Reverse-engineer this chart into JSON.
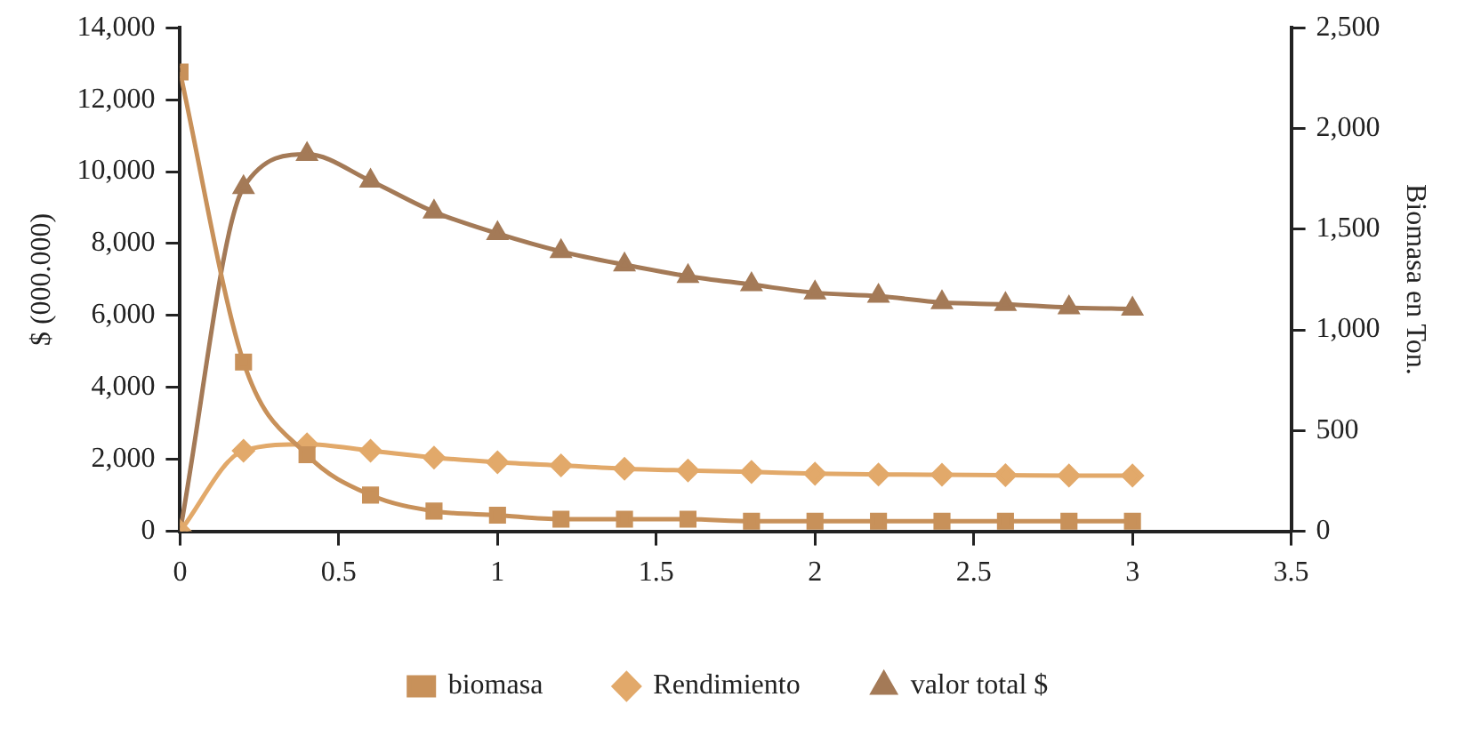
{
  "chart_data": {
    "type": "line",
    "xlabel": null,
    "ylabel": "$ (000.000)",
    "y2label": "Biomasa en Ton.",
    "x": [
      0,
      0.2,
      0.4,
      0.6,
      0.8,
      1,
      1.2,
      1.4,
      1.6,
      1.8,
      2,
      2.2,
      2.4,
      2.6,
      2.8,
      3
    ],
    "series": [
      {
        "name": "biomasa",
        "color": "#c8915a",
        "marker": "square",
        "axis": "y2",
        "values": [
          2280,
          840,
          380,
          180,
          100,
          80,
          60,
          60,
          60,
          50,
          50,
          50,
          50,
          50,
          50,
          50
        ]
      },
      {
        "name": "Rendimiento",
        "color": "#e2a96a",
        "marker": "diamond",
        "values": [
          0,
          2240,
          2420,
          2240,
          2050,
          1920,
          1830,
          1740,
          1690,
          1650,
          1600,
          1580,
          1570,
          1560,
          1550,
          1550
        ]
      },
      {
        "name": "valor total $",
        "color": "#a47a57",
        "marker": "triangle",
        "values": [
          0,
          9560,
          10480,
          9740,
          8880,
          8280,
          7780,
          7410,
          7090,
          6860,
          6630,
          6540,
          6360,
          6310,
          6220,
          6180
        ]
      }
    ],
    "xlim": [
      0,
      3.5
    ],
    "xticks": [
      0,
      0.5,
      1,
      1.5,
      2,
      2.5,
      3,
      3.5
    ],
    "ylim": [
      0,
      14000
    ],
    "yticks": [
      {
        "value": 0,
        "label": "0"
      },
      {
        "value": 2000,
        "label": "2,000"
      },
      {
        "value": 4000,
        "label": "4,000"
      },
      {
        "value": 6000,
        "label": "6,000"
      },
      {
        "value": 8000,
        "label": "8,000"
      },
      {
        "value": 10000,
        "label": "10,000"
      },
      {
        "value": 12000,
        "label": "12,000"
      },
      {
        "value": 14000,
        "label": "14,000"
      }
    ],
    "y2lim": [
      0,
      2500
    ],
    "y2ticks": [
      {
        "value": 0,
        "label": "0"
      },
      {
        "value": 500,
        "label": "500"
      },
      {
        "value": 1000,
        "label": "1,000"
      },
      {
        "value": 1500,
        "label": "1,500"
      },
      {
        "value": 2000,
        "label": "2,000"
      },
      {
        "value": 2500,
        "label": "2,500"
      }
    ],
    "grid": false,
    "legend": "bottom",
    "line_style": "solid"
  }
}
